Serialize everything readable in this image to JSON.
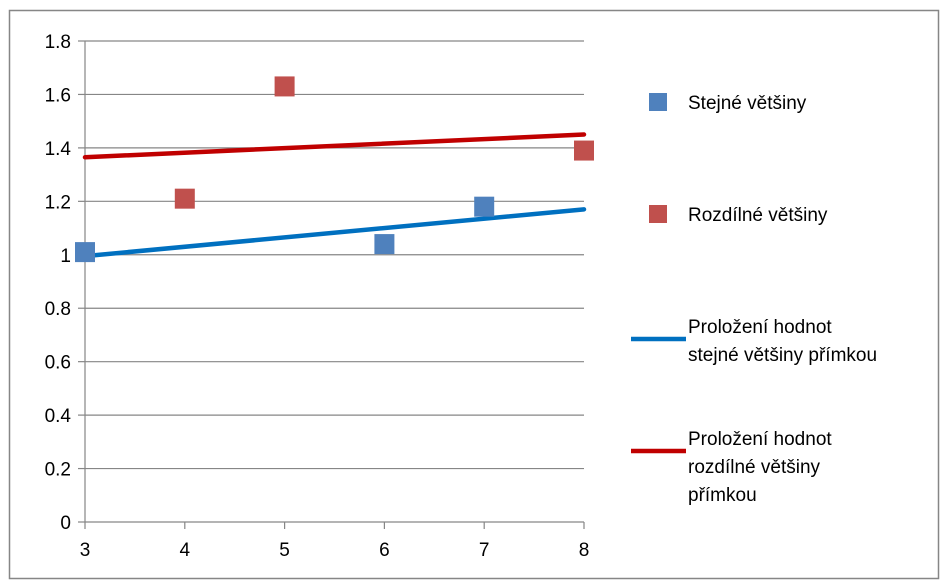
{
  "chart_data": {
    "type": "scatter",
    "title": "",
    "xlabel": "",
    "ylabel": "",
    "xlim": [
      3,
      8
    ],
    "ylim": [
      0,
      1.8
    ],
    "x_ticks": [
      "3",
      "4",
      "5",
      "6",
      "7",
      "8"
    ],
    "y_ticks": [
      "0",
      "0.2",
      "0.4",
      "0.6",
      "0.8",
      "1",
      "1.2",
      "1.4",
      "1.6",
      "1.8"
    ],
    "grid": "horizontal",
    "legend_position": "right",
    "series": [
      {
        "name": "Stejné většiny",
        "kind": "points",
        "marker": "square",
        "color": "#4f81bd",
        "x": [
          3,
          6,
          7
        ],
        "y": [
          1.01,
          1.04,
          1.18
        ]
      },
      {
        "name": "Rozdílné většiny",
        "kind": "points",
        "marker": "square",
        "color": "#c0504d",
        "x": [
          4,
          5,
          8
        ],
        "y": [
          1.21,
          1.63,
          1.39
        ]
      },
      {
        "name": "Proložení hodnot stejné většiny přímkou",
        "legend_lines": [
          "Proložení hodnot",
          "stejné většiny přímkou"
        ],
        "kind": "line",
        "color": "#0070c0",
        "x": [
          3,
          8
        ],
        "y": [
          0.995,
          1.17
        ]
      },
      {
        "name": "Proložení hodnot rozdílné většiny přímkou",
        "legend_lines": [
          "Proložení hodnot",
          "rozdílné většiny",
          "přímkou"
        ],
        "kind": "line",
        "color": "#c00000",
        "x": [
          3,
          8
        ],
        "y": [
          1.365,
          1.45
        ]
      }
    ]
  }
}
